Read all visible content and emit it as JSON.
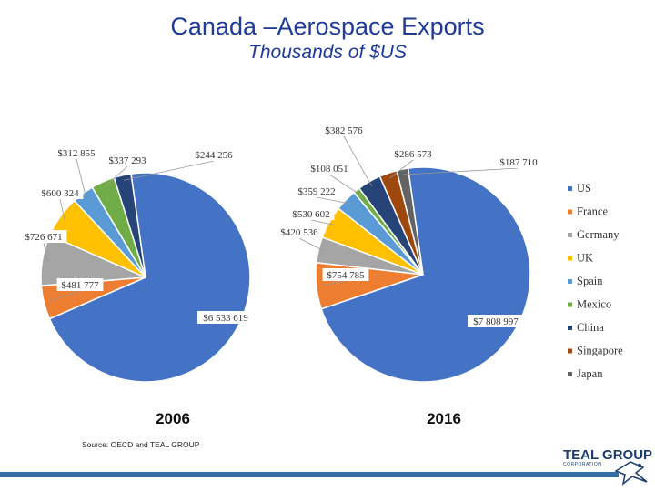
{
  "title": "Canada –Aerospace Exports",
  "subtitle": "Thousands of $US",
  "source": "Source: OECD and TEAL GROUP",
  "logo": {
    "name": "TEAL GROUP",
    "sub": "CORPORATION"
  },
  "colors": {
    "US": "#4472c4",
    "France": "#ed7d31",
    "Germany": "#a5a5a5",
    "UK": "#ffc000",
    "Spain": "#5b9bd5",
    "Mexico": "#70ad47",
    "China": "#264478",
    "Singapore": "#9e480e",
    "Japan": "#636363",
    "accent_bar": "#2f6fa6",
    "title": "#1f3a99"
  },
  "chart_data": [
    {
      "type": "pie",
      "title": "2006",
      "categories": [
        "US",
        "France",
        "Germany",
        "UK",
        "Spain",
        "Mexico",
        "China",
        "Singapore",
        "Japan"
      ],
      "values": [
        6533619,
        481777,
        726671,
        600324,
        312855,
        337293,
        244256,
        0,
        0
      ],
      "labels": [
        "$6 533 619",
        "$481 777",
        "$726 671",
        "$600 324",
        "$312 855",
        "$337 293",
        "$244 256",
        "",
        ""
      ]
    },
    {
      "type": "pie",
      "title": "2016",
      "categories": [
        "US",
        "France",
        "Germany",
        "UK",
        "Spain",
        "Mexico",
        "China",
        "Singapore",
        "Japan"
      ],
      "values": [
        7808997,
        754785,
        420536,
        530602,
        359222,
        108051,
        382576,
        286573,
        187710
      ],
      "labels": [
        "$7 808 997",
        "$754 785",
        "$420 536",
        "$530 602",
        "$359 222",
        "$108 051",
        "$382 576",
        "$286 573",
        "$187 710"
      ]
    }
  ],
  "legend": {
    "position": "right",
    "items": [
      "US",
      "France",
      "Germany",
      "UK",
      "Spain",
      "Mexico",
      "China",
      "Singapore",
      "Japan"
    ]
  }
}
